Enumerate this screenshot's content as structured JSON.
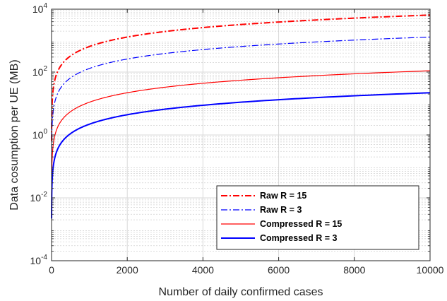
{
  "chart_data": {
    "type": "line",
    "xlabel": "Number of daily confirmed cases",
    "ylabel": "Data cosumption per UE (MB)",
    "xlim": [
      0,
      10000
    ],
    "ylim": [
      0.0001,
      10000
    ],
    "yscale": "log",
    "xticks": [
      0,
      2000,
      4000,
      6000,
      8000,
      10000
    ],
    "xtick_labels": [
      "0",
      "2000",
      "4000",
      "6000",
      "8000",
      "10000"
    ],
    "yticks": [
      0.0001,
      0.01,
      1,
      100,
      10000
    ],
    "ytick_labels": [
      {
        "base": "10",
        "exp": "-4"
      },
      {
        "base": "10",
        "exp": "-2"
      },
      {
        "base": "10",
        "exp": "0"
      },
      {
        "base": "10",
        "exp": "2"
      },
      {
        "base": "10",
        "exp": "4"
      }
    ],
    "grid": true,
    "legend_position": "bottom-right",
    "series": [
      {
        "name": "Raw R = 15",
        "color": "#ff0000",
        "style": "dashdot",
        "width": 2,
        "x": [
          0,
          10,
          100,
          500,
          1000,
          2000,
          4000,
          6000,
          8000,
          10000
        ],
        "y": [
          0.65,
          6.5,
          65,
          325,
          650,
          1300,
          2600,
          3900,
          5200,
          6500
        ]
      },
      {
        "name": "Raw R = 3",
        "color": "#0000ff",
        "style": "dashdot",
        "width": 1.2,
        "x": [
          0,
          10,
          100,
          500,
          1000,
          2000,
          4000,
          6000,
          8000,
          10000
        ],
        "y": [
          0.13,
          1.3,
          13,
          65,
          130,
          260,
          520,
          780,
          1040,
          1300
        ]
      },
      {
        "name": "Compressed R = 15",
        "color": "#ff0000",
        "style": "solid",
        "width": 1.2,
        "x": [
          0,
          10,
          100,
          500,
          1000,
          2000,
          4000,
          6000,
          8000,
          10000
        ],
        "y": [
          0.011,
          0.11,
          1.1,
          5.5,
          11,
          22,
          44,
          66,
          88,
          110
        ]
      },
      {
        "name": "Compressed R = 3",
        "color": "#0000ff",
        "style": "solid",
        "width": 2,
        "x": [
          0,
          10,
          100,
          500,
          1000,
          2000,
          4000,
          6000,
          8000,
          10000
        ],
        "y": [
          0.0022,
          0.022,
          0.22,
          1.1,
          2.2,
          4.4,
          8.8,
          13.2,
          17.6,
          22
        ]
      }
    ]
  }
}
